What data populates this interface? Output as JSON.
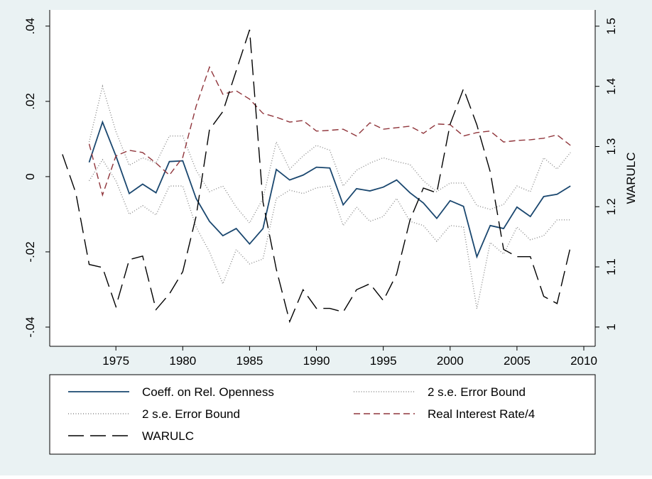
{
  "chart_data": {
    "type": "line",
    "x": [
      1971,
      1972,
      1973,
      1974,
      1975,
      1976,
      1977,
      1978,
      1979,
      1980,
      1981,
      1982,
      1983,
      1984,
      1985,
      1986,
      1987,
      1988,
      1989,
      1990,
      1991,
      1992,
      1993,
      1994,
      1995,
      1996,
      1997,
      1998,
      1999,
      2000,
      2001,
      2002,
      2003,
      2004,
      2005,
      2006,
      2007,
      2008,
      2009
    ],
    "series": [
      {
        "name": "Coeff. on Rel. Openness",
        "color": "#1a476f",
        "line_style": "solid",
        "values": [
          null,
          null,
          0.0038,
          0.0145,
          0.0055,
          -0.0045,
          -0.002,
          -0.0043,
          0.004,
          0.0042,
          -0.0058,
          -0.0119,
          -0.0157,
          -0.0138,
          -0.0179,
          -0.0138,
          0.0019,
          -0.0009,
          0.0004,
          0.0025,
          0.0023,
          -0.0075,
          -0.0032,
          -0.0038,
          -0.0028,
          -0.0009,
          -0.0043,
          -0.007,
          -0.0111,
          -0.0064,
          -0.0079,
          -0.0213,
          -0.013,
          -0.0138,
          -0.0081,
          -0.0106,
          -0.0053,
          -0.0047,
          -0.0025
        ]
      },
      {
        "name": "2 s.e. Error Bound",
        "color": "#8a8a8a",
        "line_style": "dotted",
        "values": [
          null,
          null,
          0.0092,
          0.024,
          0.012,
          0.003,
          0.005,
          0.0036,
          0.0108,
          0.0108,
          0.0017,
          -0.004,
          -0.0025,
          -0.0081,
          -0.0123,
          -0.0058,
          0.0092,
          0.002,
          0.0055,
          0.0083,
          0.007,
          -0.0025,
          0.0017,
          0.0036,
          0.005,
          0.004,
          0.0032,
          -0.0011,
          -0.004,
          -0.0017,
          -0.0017,
          -0.0077,
          -0.0087,
          -0.0074,
          -0.0025,
          -0.004,
          0.005,
          0.002,
          0.0064
        ]
      },
      {
        "name": "2 s.e. Error Bound",
        "color": "#8a8a8a",
        "line_style": "dotted",
        "values": [
          null,
          null,
          -0.0011,
          0.0045,
          -0.0011,
          -0.01,
          -0.0077,
          -0.0102,
          -0.0025,
          -0.0025,
          -0.0134,
          -0.02,
          -0.0285,
          -0.0194,
          -0.0232,
          -0.0219,
          -0.0058,
          -0.0036,
          -0.0045,
          -0.003,
          -0.0025,
          -0.013,
          -0.0081,
          -0.0119,
          -0.0106,
          -0.0058,
          -0.0119,
          -0.013,
          -0.0172,
          -0.013,
          -0.0134,
          -0.0351,
          -0.0175,
          -0.0206,
          -0.0134,
          -0.0168,
          -0.0157,
          -0.0115,
          -0.0115
        ]
      },
      {
        "name": "Real Interest Rate/4",
        "color": "#90353b",
        "line_style": "dashed",
        "values": [
          null,
          null,
          0.0087,
          -0.0049,
          0.0055,
          0.007,
          0.0064,
          0.0036,
          0.0004,
          0.0051,
          0.0187,
          0.0291,
          0.0219,
          0.0228,
          0.0206,
          0.0168,
          0.0158,
          0.0145,
          0.0149,
          0.0121,
          0.0123,
          0.0126,
          0.0108,
          0.0143,
          0.0126,
          0.013,
          0.0134,
          0.0115,
          0.014,
          0.0138,
          0.0108,
          0.0117,
          0.0121,
          0.0092,
          0.0096,
          0.0098,
          0.0102,
          0.0111,
          0.0083
        ]
      },
      {
        "name": "WARULC",
        "color": "#000000",
        "line_style": "longdash",
        "axis": "y2",
        "values": [
          1.287,
          1.223,
          1.104,
          1.099,
          1.034,
          1.112,
          1.118,
          1.029,
          1.055,
          1.092,
          1.184,
          1.328,
          1.358,
          1.426,
          1.494,
          1.208,
          1.096,
          1.009,
          1.062,
          1.031,
          1.031,
          1.025,
          1.062,
          1.072,
          1.044,
          1.088,
          1.178,
          1.231,
          1.223,
          1.337,
          1.396,
          1.336,
          1.258,
          1.129,
          1.117,
          1.117,
          1.051,
          1.039,
          1.133
        ]
      }
    ],
    "xlim": [
      1970.05,
      2010.85
    ],
    "xticks": [
      1975,
      1980,
      1985,
      1990,
      1995,
      2000,
      2005,
      2010
    ],
    "ylim": [
      -0.0451,
      0.0443
    ],
    "yticks": [
      {
        "value": -0.04,
        "label": "-.04"
      },
      {
        "value": -0.02,
        "label": "-.02"
      },
      0,
      {
        "value": 0.02,
        "label": ".02"
      },
      {
        "value": 0.04,
        "label": ".04"
      }
    ],
    "y2lim": [
      0.968,
      1.527
    ],
    "y2ticks": [
      1,
      1.1,
      1.2,
      1.3,
      1.4,
      1.5
    ],
    "y2label": "WARULC",
    "grid": false,
    "legend_position": "bottom"
  }
}
